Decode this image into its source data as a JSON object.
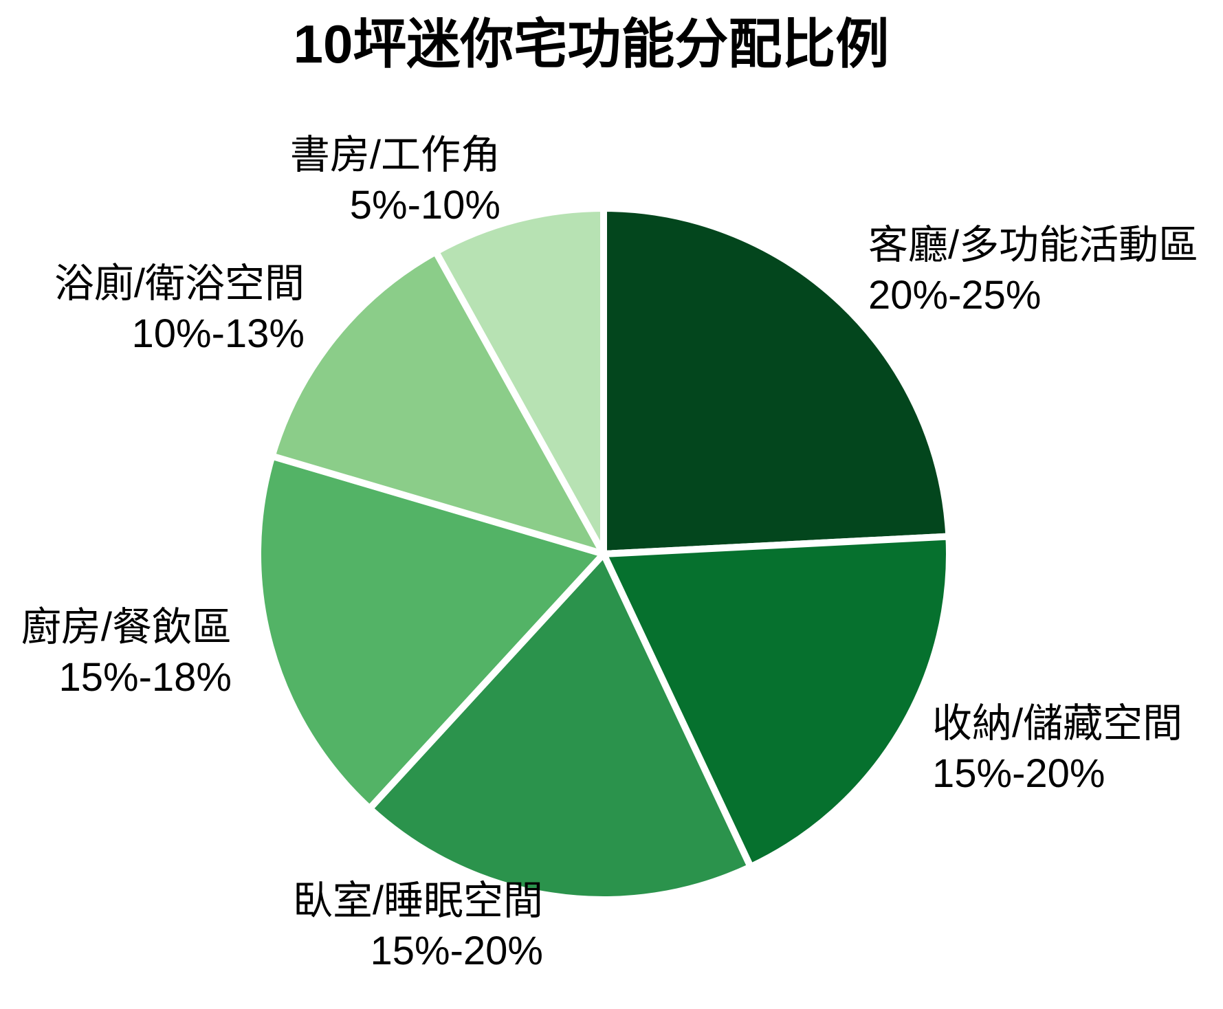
{
  "chart_data": {
    "type": "pie",
    "title": "10坪迷你宅功能分配比例",
    "start_angle_deg": 90,
    "direction": "clockwise",
    "legend": "none",
    "labels_position": "outside",
    "background": "#ffffff",
    "text_color": "#000000",
    "separator_color": "#ffffff",
    "slices": [
      {
        "name": "客廳/多功能活動區",
        "range": "20%-25%",
        "value_mid": 22.5,
        "share_pct": 24.2,
        "color": "#03461d"
      },
      {
        "name": "收納/儲藏空間",
        "range": "15%-20%",
        "value_mid": 17.5,
        "share_pct": 18.8,
        "color": "#06712e"
      },
      {
        "name": "臥室/睡眠空間",
        "range": "15%-20%",
        "value_mid": 17.5,
        "share_pct": 18.8,
        "color": "#2b934c"
      },
      {
        "name": "廚房/餐飲區",
        "range": "15%-18%",
        "value_mid": 16.5,
        "share_pct": 17.7,
        "color": "#53b366"
      },
      {
        "name": "浴廁/衛浴空間",
        "range": "10%-13%",
        "value_mid": 11.5,
        "share_pct": 12.4,
        "color": "#8bcd89"
      },
      {
        "name": "書房/工作角",
        "range": "5%-10%",
        "value_mid": 7.5,
        "share_pct": 8.1,
        "color": "#b7e2b3"
      }
    ]
  }
}
